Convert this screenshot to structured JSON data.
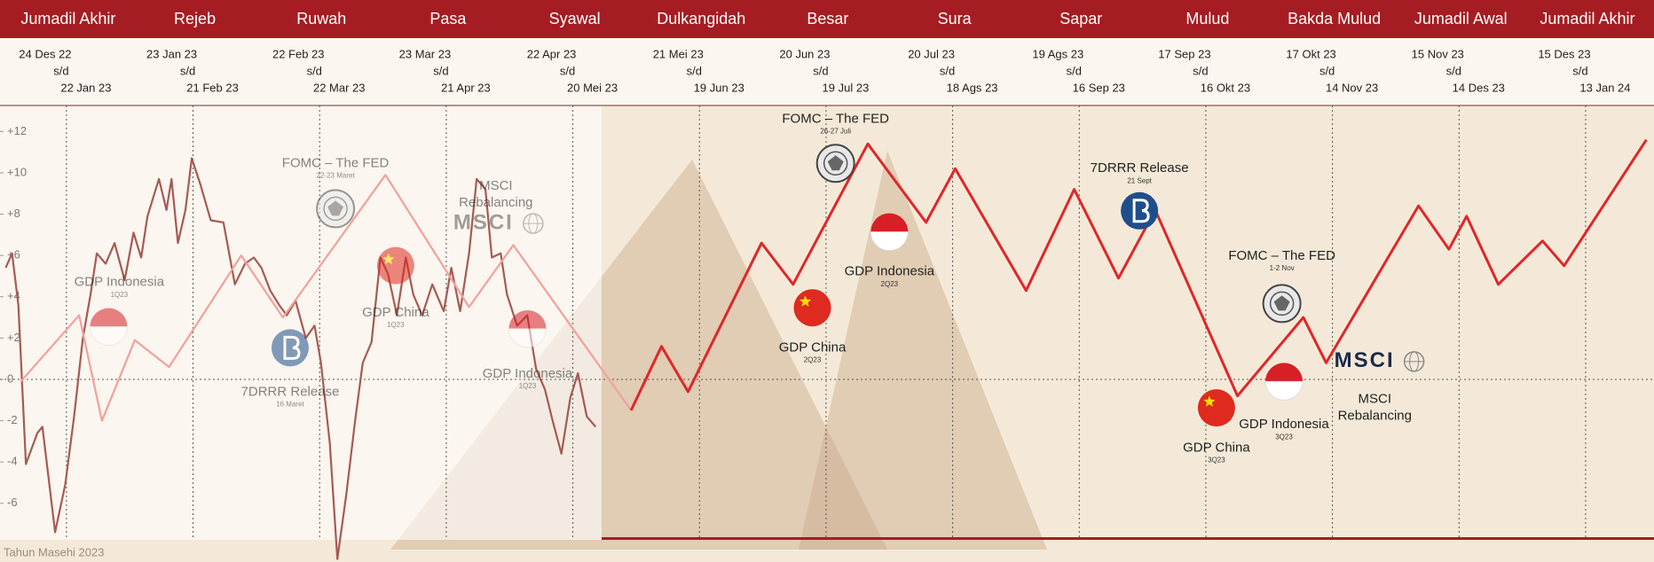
{
  "chart_data": {
    "type": "line",
    "periods": [
      {
        "month": "Jumadil Akhir",
        "start": "24 Des 22",
        "end": "22 Jan 23"
      },
      {
        "month": "Rejeb",
        "start": "23 Jan 23",
        "end": "21 Feb 23"
      },
      {
        "month": "Ruwah",
        "start": "22 Feb 23",
        "end": "22 Mar 23"
      },
      {
        "month": "Pasa",
        "start": "23 Mar 23",
        "end": "21 Apr 23"
      },
      {
        "month": "Syawal",
        "start": "22 Apr 23",
        "end": "20 Mei 23"
      },
      {
        "month": "Dulkangidah",
        "start": "21 Mei 23",
        "end": "19 Jun 23"
      },
      {
        "month": "Besar",
        "start": "20 Jun 23",
        "end": "19 Jul 23"
      },
      {
        "month": "Sura",
        "start": "20 Jul 23",
        "end": "18 Ags 23"
      },
      {
        "month": "Sapar",
        "start": "19 Ags 23",
        "end": "16 Sep 23"
      },
      {
        "month": "Mulud",
        "start": "17 Sep 23",
        "end": "16 Okt 23"
      },
      {
        "month": "Bakda Mulud",
        "start": "17 Okt 23",
        "end": "14 Nov 23"
      },
      {
        "month": "Jumadil Awal",
        "start": "15 Nov 23",
        "end": "14 Des 23"
      },
      {
        "month": "Jumadil Akhir",
        "start": "15 Des 23",
        "end": "13 Jan 24"
      }
    ],
    "range_separator": "s/d",
    "footnote": "Tahun Masehi 2023",
    "xlim": [
      -0.525,
      12.54
    ],
    "xticks": [
      0,
      1,
      2,
      3,
      4,
      5,
      6,
      7,
      8,
      9,
      10,
      11,
      12
    ],
    "ylim": [
      -7.77,
      13.26
    ],
    "yticks": [
      {
        "value": 12,
        "label": "+12"
      },
      {
        "value": 10,
        "label": "+10"
      },
      {
        "value": 8,
        "label": "+8"
      },
      {
        "value": 6,
        "label": "+6"
      },
      {
        "value": 4,
        "label": "+4"
      },
      {
        "value": 2,
        "label": "+2"
      },
      0,
      -2,
      -4,
      -6
    ],
    "zero_line": true,
    "series": [
      {
        "color": "#a65a55",
        "x": [
          -0.48,
          -0.43,
          -0.38,
          -0.32,
          -0.23,
          -0.19,
          -0.09,
          -0.01,
          0.06,
          0.13,
          0.19,
          0.24,
          0.31,
          0.38,
          0.46,
          0.53,
          0.59,
          0.64,
          0.73,
          0.79,
          0.83,
          0.88,
          0.94,
          0.99,
          1.06,
          1.14,
          1.24,
          1.33,
          1.41,
          1.48,
          1.54,
          1.61,
          1.68,
          1.74,
          1.81,
          1.89,
          1.96,
          2.01,
          2.08,
          2.14,
          2.21,
          2.28,
          2.34,
          2.41,
          2.48,
          2.54,
          2.61,
          2.68,
          2.74,
          2.81,
          2.89,
          2.98,
          3.04,
          3.11,
          3.18,
          3.24,
          3.31,
          3.36,
          3.43,
          3.48,
          3.56,
          3.64,
          3.71,
          3.78,
          3.84,
          3.91,
          3.98,
          4.04,
          4.11,
          4.18
        ],
        "values": [
          5.4,
          6.1,
          3.6,
          -4.1,
          -2.6,
          -2.3,
          -7.4,
          -5.1,
          -1.8,
          2.0,
          4.1,
          6.1,
          5.6,
          6.6,
          4.8,
          7.1,
          5.9,
          7.9,
          9.7,
          8.2,
          9.7,
          6.6,
          8.2,
          10.7,
          9.4,
          7.7,
          7.6,
          4.6,
          5.6,
          5.9,
          5.4,
          4.3,
          3.6,
          3.1,
          3.8,
          2.0,
          2.6,
          0.8,
          -3.1,
          -8.7,
          -5.6,
          -2.0,
          0.8,
          1.8,
          5.9,
          5.1,
          3.1,
          5.9,
          4.1,
          3.1,
          4.6,
          3.3,
          5.4,
          3.3,
          6.1,
          9.7,
          9.2,
          5.9,
          6.1,
          4.1,
          2.6,
          3.1,
          0.5,
          -0.5,
          -2.0,
          -3.6,
          -0.9,
          0.3,
          -1.8,
          -2.3
        ]
      },
      {
        "color": "#f2a09d",
        "x": [
          -0.36,
          0.1,
          0.28,
          0.54,
          0.81,
          1.38,
          1.71,
          2.52,
          3.18,
          3.53,
          4.46
        ],
        "values": [
          -0.1,
          3.1,
          -2.0,
          1.9,
          0.6,
          6.0,
          3.0,
          9.9,
          3.5,
          6.5,
          -1.5
        ]
      },
      {
        "color": "#e0262a",
        "x": [
          4.46,
          4.7,
          4.91,
          5.49,
          5.74,
          6.33,
          6.79,
          7.02,
          7.58,
          7.96,
          8.31,
          8.6,
          9.25,
          9.77,
          9.95,
          10.68,
          10.92,
          11.06,
          11.31,
          11.66,
          11.83,
          12.48
        ],
        "values": [
          -1.5,
          1.6,
          -0.6,
          6.6,
          4.6,
          11.4,
          7.6,
          10.2,
          4.3,
          9.2,
          4.9,
          8.2,
          -0.8,
          3.0,
          0.8,
          8.4,
          6.3,
          7.9,
          4.6,
          6.7,
          5.5,
          11.6
        ]
      }
    ],
    "events": [
      {
        "label": "GDP Indonesia",
        "detail": "1Q23",
        "icon": "flag-id"
      },
      {
        "label": "FOMC – The FED",
        "detail": "22-23 Maret",
        "icon": "fed"
      },
      {
        "label": "7DRRR Release",
        "detail": "16 Maret",
        "icon": "bi"
      },
      {
        "label": "MSCI",
        "detail": "Rebalancing",
        "icon": "msci",
        "logo": "MSCI"
      },
      {
        "label": "GDP China",
        "detail": "1Q23",
        "icon": "flag-cn"
      },
      {
        "label": "GDP Indonesia",
        "detail": "1Q23",
        "icon": "flag-id"
      },
      {
        "label": "FOMC – The FED",
        "detail": "26-27 Juli",
        "icon": "fed"
      },
      {
        "label": "GDP China",
        "detail": "2Q23",
        "icon": "flag-cn"
      },
      {
        "label": "GDP Indonesia",
        "detail": "2Q23",
        "icon": "flag-id"
      },
      {
        "label": "7DRRR Release",
        "detail": "21 Sept",
        "icon": "bi"
      },
      {
        "label": "FOMC – The FED",
        "detail": "1-2 Nov",
        "icon": "fed"
      },
      {
        "label": "GDP China",
        "detail": "3Q23",
        "icon": "flag-cn"
      },
      {
        "label": "GDP Indonesia",
        "detail": "3Q23",
        "icon": "flag-id"
      },
      {
        "label": "MSCI",
        "detail": "Rebalancing",
        "icon": "msci",
        "logo": "MSCI"
      }
    ]
  }
}
